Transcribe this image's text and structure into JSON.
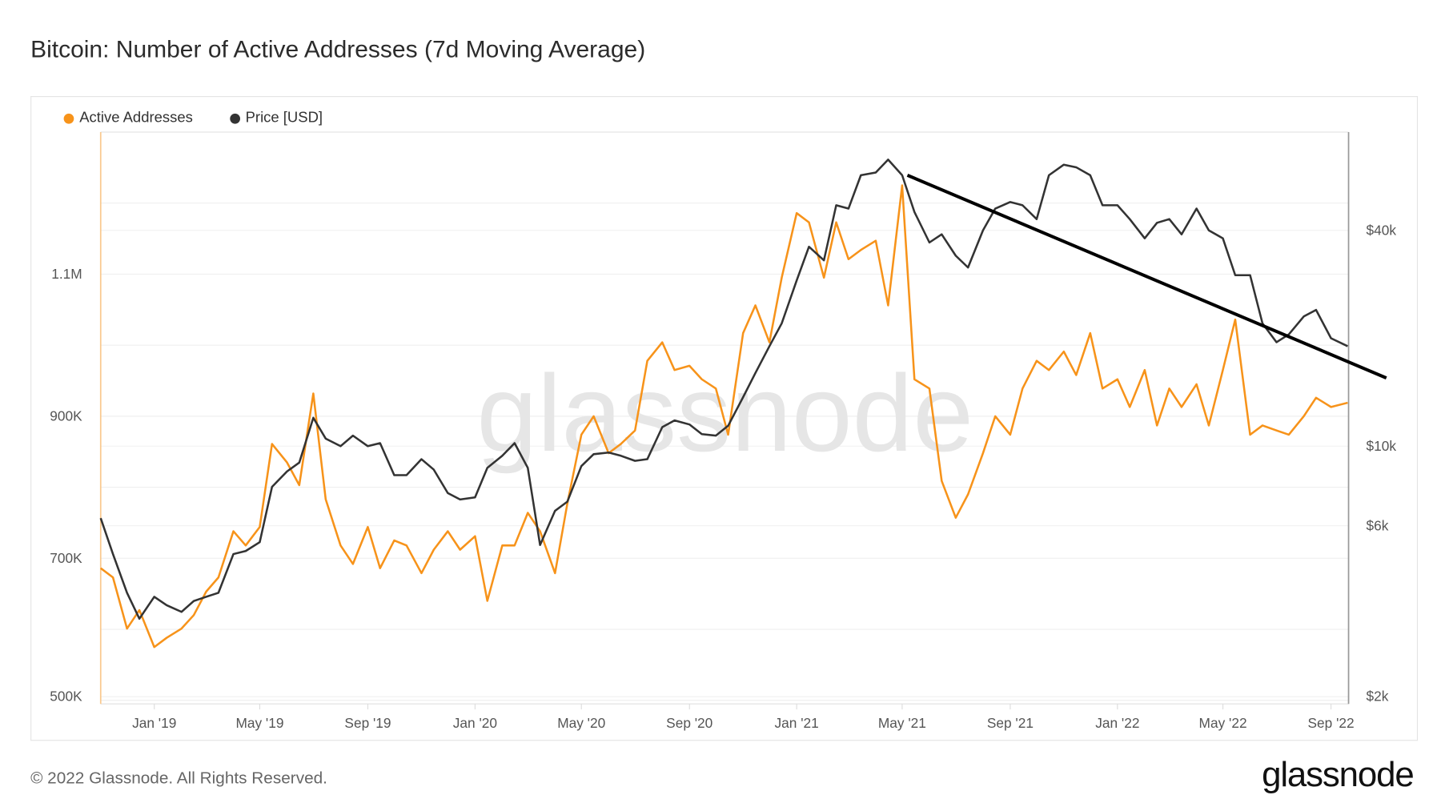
{
  "title": "Bitcoin: Number of Active Addresses (7d Moving Average)",
  "footer": "© 2022 Glassnode. All Rights Reserved.",
  "logo": "glassnode",
  "watermark": "glassnode",
  "colors": {
    "active_addresses": "#f7931a",
    "price": "#333333",
    "trendline": "#000000"
  },
  "chart_data": {
    "type": "line",
    "title": "Bitcoin: Number of Active Addresses (7d Moving Average)",
    "legend": [
      "Active Addresses",
      "Price [USD]"
    ],
    "legend_placement": "top-left",
    "xlim": [
      "2018-11-01",
      "2022-09-21"
    ],
    "x_ticks": [
      "Jan '19",
      "May '19",
      "Sep '19",
      "Jan '20",
      "May '20",
      "Sep '20",
      "Jan '21",
      "May '21",
      "Sep '21",
      "Jan '22",
      "May '22",
      "Sep '22"
    ],
    "x_tick_dates": [
      "2019-01-01",
      "2019-05-01",
      "2019-09-01",
      "2020-01-01",
      "2020-05-01",
      "2020-09-01",
      "2021-01-01",
      "2021-05-01",
      "2021-09-01",
      "2022-01-01",
      "2022-05-01",
      "2022-09-01"
    ],
    "y_left": {
      "label": "Active Addresses",
      "scale": "linear",
      "ylim": [
        495000,
        1300000
      ],
      "ticks": [
        "500K",
        "700K",
        "900K",
        "1.1M"
      ],
      "tick_values": [
        500000,
        700000,
        900000,
        1100000
      ]
    },
    "y_right": {
      "label": "Price [USD]",
      "scale": "log",
      "ylim": [
        1910,
        75200
      ],
      "ticks": [
        "$2k",
        "$6k",
        "$10k",
        "$40k"
      ],
      "tick_values": [
        2000,
        6000,
        10000,
        40000
      ]
    },
    "grid": true,
    "dates": [
      "2018-11-01",
      "2018-11-15",
      "2018-12-01",
      "2018-12-15",
      "2019-01-01",
      "2019-01-15",
      "2019-02-01",
      "2019-02-15",
      "2019-03-01",
      "2019-03-15",
      "2019-04-01",
      "2019-04-15",
      "2019-05-01",
      "2019-05-15",
      "2019-06-01",
      "2019-06-15",
      "2019-07-01",
      "2019-07-15",
      "2019-08-01",
      "2019-08-15",
      "2019-09-01",
      "2019-09-15",
      "2019-10-01",
      "2019-10-15",
      "2019-11-01",
      "2019-11-15",
      "2019-12-01",
      "2019-12-15",
      "2020-01-01",
      "2020-01-15",
      "2020-02-01",
      "2020-02-15",
      "2020-03-01",
      "2020-03-15",
      "2020-04-01",
      "2020-04-15",
      "2020-05-01",
      "2020-05-15",
      "2020-06-01",
      "2020-06-15",
      "2020-07-01",
      "2020-07-15",
      "2020-08-01",
      "2020-08-15",
      "2020-09-01",
      "2020-09-15",
      "2020-10-01",
      "2020-10-15",
      "2020-11-01",
      "2020-11-15",
      "2020-12-01",
      "2020-12-15",
      "2021-01-01",
      "2021-01-15",
      "2021-02-01",
      "2021-02-15",
      "2021-03-01",
      "2021-03-15",
      "2021-04-01",
      "2021-04-15",
      "2021-05-01",
      "2021-05-15",
      "2021-06-01",
      "2021-06-15",
      "2021-07-01",
      "2021-07-15",
      "2021-08-01",
      "2021-08-15",
      "2021-09-01",
      "2021-09-15",
      "2021-10-01",
      "2021-10-15",
      "2021-11-01",
      "2021-11-15",
      "2021-12-01",
      "2021-12-15",
      "2022-01-01",
      "2022-01-15",
      "2022-02-01",
      "2022-02-15",
      "2022-03-01",
      "2022-03-15",
      "2022-04-01",
      "2022-04-15",
      "2022-05-01",
      "2022-05-15",
      "2022-06-01",
      "2022-06-15",
      "2022-07-01",
      "2022-07-15",
      "2022-08-01",
      "2022-08-15",
      "2022-09-01",
      "2022-09-20"
    ],
    "series": [
      {
        "name": "Active Addresses",
        "axis": "left",
        "values": [
          686000,
          673000,
          601000,
          627000,
          575000,
          588000,
          601000,
          620000,
          653000,
          673000,
          738000,
          718000,
          744000,
          861000,
          835000,
          803000,
          932000,
          783000,
          718000,
          692000,
          744000,
          686000,
          725000,
          718000,
          679000,
          712000,
          738000,
          712000,
          731000,
          640000,
          718000,
          718000,
          764000,
          738000,
          679000,
          777000,
          874000,
          900000,
          848000,
          861000,
          880000,
          978000,
          1004000,
          965000,
          971000,
          952000,
          939000,
          874000,
          1017000,
          1056000,
          1004000,
          1095000,
          1186000,
          1173000,
          1095000,
          1173000,
          1121000,
          1134000,
          1147000,
          1056000,
          1225000,
          952000,
          939000,
          809000,
          757000,
          790000,
          848000,
          900000,
          874000,
          939000,
          978000,
          965000,
          991000,
          958000,
          1017000,
          939000,
          952000,
          913000,
          965000,
          887000,
          939000,
          913000,
          945000,
          887000,
          965000,
          1036000,
          874000,
          887000,
          880000,
          874000,
          900000,
          926000,
          913000,
          919000
        ]
      },
      {
        "name": "Price [USD]",
        "axis": "right",
        "values": [
          6300,
          5000,
          3900,
          3300,
          3800,
          3600,
          3450,
          3700,
          3800,
          3900,
          5000,
          5100,
          5400,
          7700,
          8500,
          9000,
          12000,
          10500,
          10000,
          10700,
          10000,
          10200,
          8300,
          8300,
          9200,
          8600,
          7400,
          7100,
          7200,
          8700,
          9400,
          10200,
          8700,
          5300,
          6600,
          7000,
          8800,
          9500,
          9600,
          9400,
          9100,
          9200,
          11300,
          11800,
          11500,
          10800,
          10700,
          11400,
          13700,
          16000,
          19000,
          22000,
          29000,
          36000,
          33000,
          47000,
          46000,
          57000,
          58000,
          63000,
          57000,
          45000,
          37000,
          39000,
          34000,
          31500,
          40000,
          46000,
          48000,
          47000,
          43000,
          57000,
          61000,
          60000,
          57000,
          47000,
          47000,
          43000,
          38000,
          42000,
          43000,
          39000,
          46000,
          40000,
          38000,
          30000,
          30000,
          22000,
          19500,
          20500,
          23000,
          24000,
          20000,
          19000
        ]
      }
    ],
    "annotations": [
      {
        "type": "trendline",
        "axis": "right",
        "from": {
          "date": "2021-05-07",
          "value": 57000
        },
        "to": {
          "date": "2022-11-03",
          "value": 15500
        }
      }
    ]
  }
}
